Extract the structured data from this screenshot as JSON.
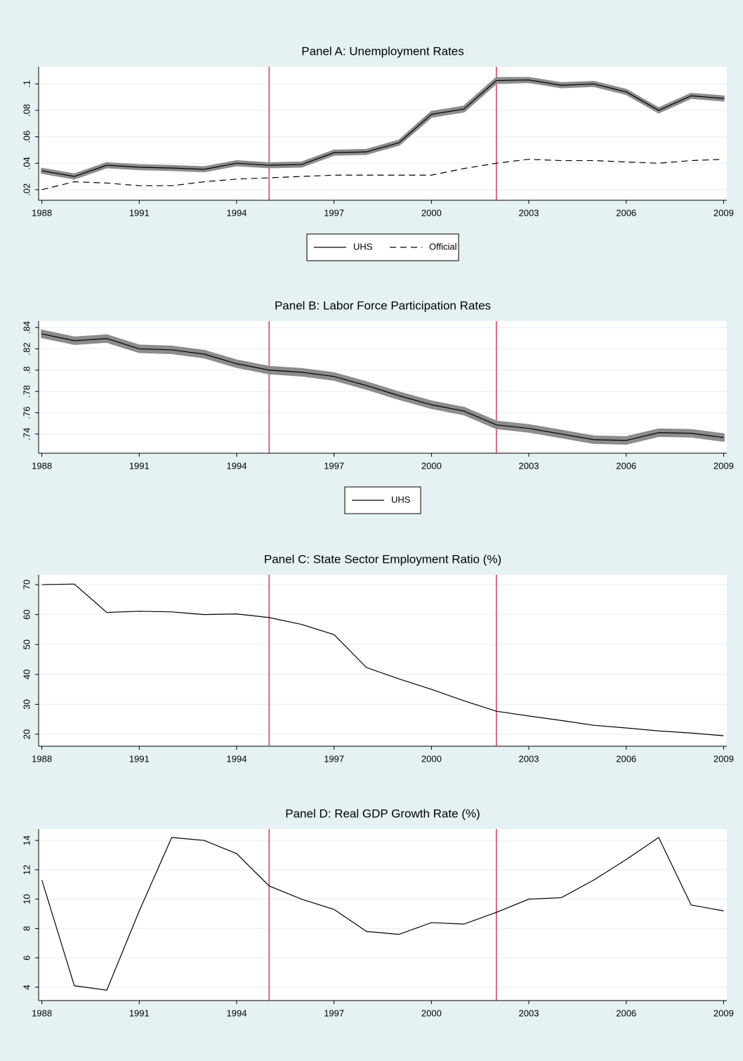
{
  "chart_data": [
    {
      "type": "line",
      "title": "Panel A: Unemployment Rates",
      "x": [
        1988,
        1989,
        1990,
        1991,
        1992,
        1993,
        1994,
        1995,
        1996,
        1997,
        1998,
        1999,
        2000,
        2001,
        2002,
        2003,
        2004,
        2005,
        2006,
        2007,
        2008,
        2009
      ],
      "series": [
        {
          "name": "UHS",
          "color": "#000000",
          "style": "solid",
          "values": [
            0.0343,
            0.03,
            0.0385,
            0.037,
            0.0364,
            0.0354,
            0.04,
            0.0385,
            0.039,
            0.048,
            0.0486,
            0.0555,
            0.077,
            0.081,
            0.1026,
            0.103,
            0.099,
            0.1,
            0.094,
            0.08,
            0.091,
            0.089
          ],
          "ci": [
            0.0015,
            0.0015,
            0.0015,
            0.0015,
            0.0015,
            0.0015,
            0.0015,
            0.0015,
            0.0015,
            0.0015,
            0.0015,
            0.0015,
            0.0018,
            0.0018,
            0.0018,
            0.0015,
            0.0015,
            0.0015,
            0.0015,
            0.0015,
            0.0015,
            0.0015
          ]
        },
        {
          "name": "Official",
          "color": "#000000",
          "style": "dashed",
          "values": [
            0.02,
            0.026,
            0.025,
            0.023,
            0.023,
            0.026,
            0.028,
            0.029,
            0.03,
            0.031,
            0.031,
            0.031,
            0.031,
            0.036,
            0.04,
            0.043,
            0.042,
            0.042,
            0.041,
            0.04,
            0.042,
            0.043
          ]
        }
      ],
      "xlim": [
        1987.9,
        2009.1
      ],
      "xticks": [
        1988,
        1991,
        1994,
        1997,
        2000,
        2003,
        2006,
        2009
      ],
      "ylim": [
        0.012,
        0.113
      ],
      "yticks": [
        {
          "value": 0.02,
          "label": ".02"
        },
        {
          "value": 0.04,
          "label": ".04"
        },
        {
          "value": 0.06,
          "label": ".06"
        },
        {
          "value": 0.08,
          "label": ".08"
        },
        {
          "value": 0.1,
          "label": ".1"
        }
      ],
      "vlines": [
        1995,
        2002
      ],
      "vline_color": "#c8102e",
      "grid": true,
      "legend": "bottom"
    },
    {
      "type": "line",
      "title": "Panel B: Labor Force Participation Rates",
      "x": [
        1988,
        1989,
        1990,
        1991,
        1992,
        1993,
        1994,
        1995,
        1996,
        1997,
        1998,
        1999,
        2000,
        2001,
        2002,
        2003,
        2004,
        2005,
        2006,
        2007,
        2008,
        2009
      ],
      "series": [
        {
          "name": "UHS",
          "color": "#000000",
          "style": "solid",
          "values": [
            0.834,
            0.8276,
            0.8296,
            0.82,
            0.819,
            0.815,
            0.806,
            0.8,
            0.798,
            0.794,
            0.7855,
            0.776,
            0.7675,
            0.7616,
            0.7486,
            0.7453,
            0.74,
            0.7347,
            0.734,
            0.7413,
            0.7407,
            0.7367
          ],
          "ci": [
            0.003,
            0.003,
            0.003,
            0.003,
            0.003,
            0.003,
            0.003,
            0.003,
            0.003,
            0.003,
            0.003,
            0.003,
            0.003,
            0.003,
            0.003,
            0.003,
            0.003,
            0.003,
            0.003,
            0.003,
            0.003,
            0.003
          ]
        }
      ],
      "xlim": [
        1987.9,
        2009.1
      ],
      "xticks": [
        1988,
        1991,
        1994,
        1997,
        2000,
        2003,
        2006,
        2009
      ],
      "ylim": [
        0.722,
        0.846
      ],
      "yticks": [
        {
          "value": 0.74,
          "label": ".74"
        },
        {
          "value": 0.76,
          "label": ".76"
        },
        {
          "value": 0.78,
          "label": ".78"
        },
        {
          "value": 0.8,
          "label": ".8"
        },
        {
          "value": 0.82,
          "label": ".82"
        },
        {
          "value": 0.84,
          "label": ".84"
        }
      ],
      "vlines": [
        1995,
        2002
      ],
      "vline_color": "#c8102e",
      "grid": true,
      "legend": "bottom"
    },
    {
      "type": "line",
      "title": "Panel C: State Sector Employment Ratio (%)",
      "x": [
        1988,
        1989,
        1990,
        1991,
        1992,
        1993,
        1994,
        1995,
        1996,
        1997,
        1998,
        1999,
        2000,
        2001,
        2002,
        2003,
        2004,
        2005,
        2006,
        2007,
        2008,
        2009
      ],
      "series": [
        {
          "color": "#000000",
          "style": "solid",
          "values": [
            70,
            70.2,
            60.7,
            61.1,
            60.9,
            60,
            60.2,
            59,
            56.7,
            53.3,
            42.3,
            38.5,
            35,
            31.2,
            27.7,
            26.1,
            24.6,
            23,
            22.1,
            21.1,
            20.4,
            19.5
          ]
        }
      ],
      "xlim": [
        1987.9,
        2009.1
      ],
      "xticks": [
        1988,
        1991,
        1994,
        1997,
        2000,
        2003,
        2006,
        2009
      ],
      "ylim": [
        16,
        73.3
      ],
      "yticks": [
        20,
        30,
        40,
        50,
        60,
        70
      ],
      "vlines": [
        1995,
        2002
      ],
      "vline_color": "#c8102e",
      "grid": true
    },
    {
      "type": "line",
      "title": "Panel D: Real GDP Growth Rate (%)",
      "x": [
        1988,
        1989,
        1990,
        1991,
        1992,
        1993,
        1994,
        1995,
        1996,
        1997,
        1998,
        1999,
        2000,
        2001,
        2002,
        2003,
        2004,
        2005,
        2006,
        2007,
        2008,
        2009
      ],
      "series": [
        {
          "color": "#000000",
          "style": "solid",
          "values": [
            11.3,
            4.1,
            3.8,
            9.2,
            14.2,
            14.0,
            13.1,
            10.9,
            10.0,
            9.3,
            7.8,
            7.6,
            8.4,
            8.3,
            9.1,
            10.0,
            10.1,
            11.3,
            12.7,
            14.2,
            9.6,
            9.2
          ]
        }
      ],
      "xlim": [
        1987.9,
        2009.1
      ],
      "xticks": [
        1988,
        1991,
        1994,
        1997,
        2000,
        2003,
        2006,
        2009
      ],
      "ylim": [
        3.09,
        14.77
      ],
      "yticks": [
        4,
        6,
        8,
        10,
        12,
        14
      ],
      "vlines": [
        1995,
        2002
      ],
      "vline_color": "#c8102e",
      "grid": true
    }
  ]
}
